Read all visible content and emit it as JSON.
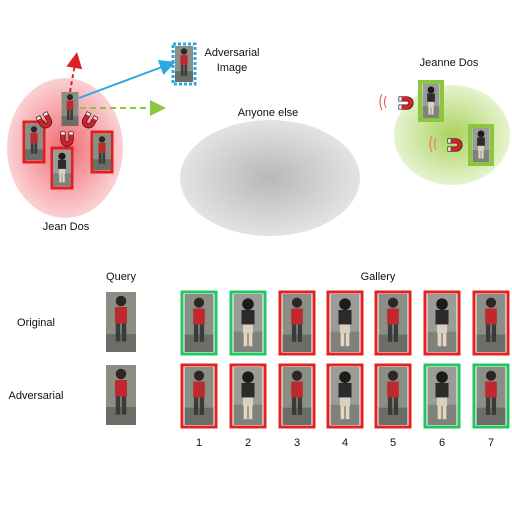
{
  "top": {
    "cluster_jean_label": "Jean Dos",
    "cluster_jeanne_label": "Jeanne Dos",
    "cluster_other_label": "Anyone else",
    "adversarial_label_line1": "Adversarial",
    "adversarial_label_line2": "Image",
    "icons": [
      "magnet-icon",
      "red-arrow-icon",
      "blue-arrow-icon",
      "green-dashed-arrow-icon"
    ],
    "colors": {
      "jean_cluster": "#f7a9ad",
      "jeanne_cluster": "#c2e08a",
      "other_cluster": "#cfcfcf",
      "negative_box": "#e02020",
      "positive_box": "#8cc63f",
      "adversarial_box": "#2aa9e0"
    }
  },
  "bottom": {
    "query_header": "Query",
    "gallery_header": "Gallery",
    "rows": [
      {
        "label": "Original",
        "results": [
          "match",
          "match",
          "nonmatch",
          "nonmatch",
          "nonmatch",
          "nonmatch",
          "nonmatch"
        ]
      },
      {
        "label": "Adversarial",
        "results": [
          "nonmatch",
          "nonmatch",
          "nonmatch",
          "nonmatch",
          "nonmatch",
          "match",
          "match"
        ]
      }
    ],
    "ranks": [
      "1",
      "2",
      "3",
      "4",
      "5",
      "6",
      "7"
    ],
    "colors": {
      "match": "#22c55e",
      "nonmatch": "#e02424"
    }
  }
}
